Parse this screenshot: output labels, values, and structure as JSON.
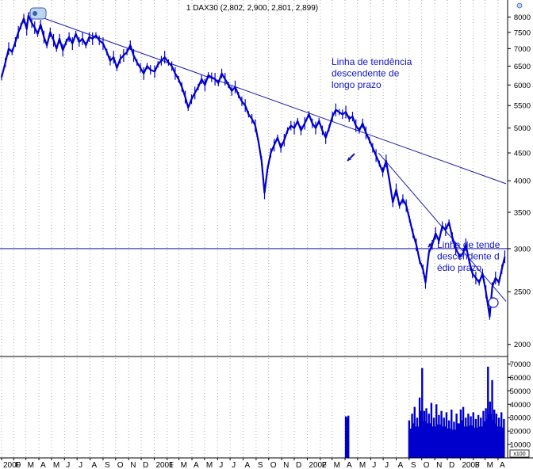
{
  "chart_data": {
    "type": "line",
    "title": "1 DAX30 (2,802, 2,900, 2,801, 2,899)",
    "price_axis": {
      "scale": "log",
      "ylim": [
        1900,
        8600
      ],
      "ticks": [
        8000,
        7500,
        7000,
        6500,
        6000,
        5500,
        5000,
        4500,
        4000,
        3500,
        3000,
        2500,
        2000
      ]
    },
    "volume_axis": {
      "ylim": [
        0,
        75000
      ],
      "ticks": [
        70000,
        60000,
        50000,
        40000,
        30000,
        20000,
        10000
      ],
      "multiplier_label": "x100"
    },
    "x_axis": {
      "ticks": [
        {
          "label": "2000",
          "date": "2000-01-03"
        },
        {
          "label": "F",
          "date": "2000-02-01"
        },
        {
          "label": "M",
          "date": "2000-03-01"
        },
        {
          "label": "A",
          "date": "2000-04-01"
        },
        {
          "label": "M",
          "date": "2000-05-01"
        },
        {
          "label": "J",
          "date": "2000-06-01"
        },
        {
          "label": "J",
          "date": "2000-07-01"
        },
        {
          "label": "A",
          "date": "2000-08-01"
        },
        {
          "label": "S",
          "date": "2000-09-01"
        },
        {
          "label": "O",
          "date": "2000-10-01"
        },
        {
          "label": "N",
          "date": "2000-11-01"
        },
        {
          "label": "D",
          "date": "2000-12-01"
        },
        {
          "label": "2001",
          "date": "2001-01-01"
        },
        {
          "label": "F",
          "date": "2001-02-01"
        },
        {
          "label": "M",
          "date": "2001-03-01"
        },
        {
          "label": "A",
          "date": "2001-04-01"
        },
        {
          "label": "M",
          "date": "2001-05-01"
        },
        {
          "label": "J",
          "date": "2001-06-01"
        },
        {
          "label": "J",
          "date": "2001-07-01"
        },
        {
          "label": "A",
          "date": "2001-08-01"
        },
        {
          "label": "S",
          "date": "2001-09-01"
        },
        {
          "label": "O",
          "date": "2001-10-01"
        },
        {
          "label": "N",
          "date": "2001-11-01"
        },
        {
          "label": "D",
          "date": "2001-12-01"
        },
        {
          "label": "2002",
          "date": "2002-01-01"
        },
        {
          "label": "F",
          "date": "2002-02-01"
        },
        {
          "label": "M",
          "date": "2002-03-01"
        },
        {
          "label": "A",
          "date": "2002-04-01"
        },
        {
          "label": "M",
          "date": "2002-05-01"
        },
        {
          "label": "J",
          "date": "2002-06-01"
        },
        {
          "label": "J",
          "date": "2002-07-01"
        },
        {
          "label": "A",
          "date": "2002-08-01"
        },
        {
          "label": "S",
          "date": "2002-09-01"
        },
        {
          "label": "O",
          "date": "2002-10-01"
        },
        {
          "label": "N",
          "date": "2002-11-01"
        },
        {
          "label": "D",
          "date": "2002-12-01"
        },
        {
          "label": "2003",
          "date": "2003-01-01"
        },
        {
          "label": "F",
          "date": "2003-02-01"
        },
        {
          "label": "M",
          "date": "2003-03-01"
        },
        {
          "label": "A",
          "date": "2003-04-01"
        }
      ],
      "end_date": "2003-04-20"
    },
    "series": [
      {
        "type": "line",
        "color": "#0000cc",
        "points": [
          [
            "2000-01-03",
            6200
          ],
          [
            "2000-01-12",
            6600
          ],
          [
            "2000-01-20",
            7000
          ],
          [
            "2000-01-28",
            6900
          ],
          [
            "2000-02-05",
            7200
          ],
          [
            "2000-02-12",
            7500
          ],
          [
            "2000-02-18",
            7700
          ],
          [
            "2000-02-25",
            7950
          ],
          [
            "2000-03-03",
            7600
          ],
          [
            "2000-03-07",
            8050
          ],
          [
            "2000-03-15",
            7800
          ],
          [
            "2000-03-22",
            7650
          ],
          [
            "2000-03-29",
            7450
          ],
          [
            "2000-04-05",
            7750
          ],
          [
            "2000-04-13",
            7350
          ],
          [
            "2000-04-20",
            7100
          ],
          [
            "2000-04-28",
            7500
          ],
          [
            "2000-05-06",
            7250
          ],
          [
            "2000-05-13",
            7000
          ],
          [
            "2000-05-20",
            7300
          ],
          [
            "2000-05-28",
            6950
          ],
          [
            "2000-06-05",
            7200
          ],
          [
            "2000-06-12",
            7350
          ],
          [
            "2000-06-20",
            7150
          ],
          [
            "2000-06-28",
            7450
          ],
          [
            "2000-07-06",
            7200
          ],
          [
            "2000-07-14",
            7300
          ],
          [
            "2000-07-22",
            7100
          ],
          [
            "2000-07-30",
            7350
          ],
          [
            "2000-08-07",
            7300
          ],
          [
            "2000-08-15",
            7400
          ],
          [
            "2000-08-23",
            7250
          ],
          [
            "2000-09-01",
            7150
          ],
          [
            "2000-09-10",
            6900
          ],
          [
            "2000-09-18",
            6650
          ],
          [
            "2000-09-26",
            6750
          ],
          [
            "2000-10-04",
            6450
          ],
          [
            "2000-10-12",
            6700
          ],
          [
            "2000-10-20",
            6800
          ],
          [
            "2000-10-28",
            6900
          ],
          [
            "2000-11-05",
            7100
          ],
          [
            "2000-11-13",
            6800
          ],
          [
            "2000-11-21",
            6600
          ],
          [
            "2000-11-29",
            6450
          ],
          [
            "2000-12-07",
            6300
          ],
          [
            "2000-12-15",
            6500
          ],
          [
            "2000-12-23",
            6400
          ],
          [
            "2001-01-02",
            6350
          ],
          [
            "2001-01-10",
            6550
          ],
          [
            "2001-01-18",
            6650
          ],
          [
            "2001-01-26",
            6750
          ],
          [
            "2001-02-04",
            6600
          ],
          [
            "2001-02-12",
            6500
          ],
          [
            "2001-02-20",
            6300
          ],
          [
            "2001-02-28",
            6150
          ],
          [
            "2001-03-08",
            5950
          ],
          [
            "2001-03-16",
            5700
          ],
          [
            "2001-03-23",
            5450
          ],
          [
            "2001-03-31",
            5650
          ],
          [
            "2001-04-08",
            5800
          ],
          [
            "2001-04-16",
            5950
          ],
          [
            "2001-04-24",
            6150
          ],
          [
            "2001-05-02",
            6000
          ],
          [
            "2001-05-10",
            6250
          ],
          [
            "2001-05-18",
            6200
          ],
          [
            "2001-05-26",
            6150
          ],
          [
            "2001-06-03",
            6050
          ],
          [
            "2001-06-11",
            6300
          ],
          [
            "2001-06-19",
            6150
          ],
          [
            "2001-06-27",
            6000
          ],
          [
            "2001-07-05",
            5850
          ],
          [
            "2001-07-13",
            5950
          ],
          [
            "2001-07-21",
            5750
          ],
          [
            "2001-07-29",
            5600
          ],
          [
            "2001-08-06",
            5500
          ],
          [
            "2001-08-14",
            5300
          ],
          [
            "2001-08-22",
            5200
          ],
          [
            "2001-08-30",
            5050
          ],
          [
            "2001-09-07",
            4700
          ],
          [
            "2001-09-14",
            4350
          ],
          [
            "2001-09-21",
            3800
          ],
          [
            "2001-09-28",
            4200
          ],
          [
            "2001-10-06",
            4500
          ],
          [
            "2001-10-14",
            4650
          ],
          [
            "2001-10-22",
            4800
          ],
          [
            "2001-10-30",
            4600
          ],
          [
            "2001-11-07",
            4750
          ],
          [
            "2001-11-15",
            4950
          ],
          [
            "2001-11-23",
            5050
          ],
          [
            "2001-12-01",
            5000
          ],
          [
            "2001-12-09",
            5150
          ],
          [
            "2001-12-17",
            4950
          ],
          [
            "2001-12-26",
            5100
          ],
          [
            "2002-01-05",
            5300
          ],
          [
            "2002-01-13",
            5100
          ],
          [
            "2002-01-21",
            5000
          ],
          [
            "2002-01-29",
            5150
          ],
          [
            "2002-02-06",
            4950
          ],
          [
            "2002-02-14",
            4800
          ],
          [
            "2002-02-22",
            5000
          ],
          [
            "2002-03-02",
            5250
          ],
          [
            "2002-03-10",
            5400
          ],
          [
            "2002-03-18",
            5350
          ],
          [
            "2002-03-26",
            5300
          ],
          [
            "2002-04-03",
            5350
          ],
          [
            "2002-04-11",
            5200
          ],
          [
            "2002-04-19",
            5250
          ],
          [
            "2002-04-27",
            5050
          ],
          [
            "2002-05-05",
            4950
          ],
          [
            "2002-05-13",
            5100
          ],
          [
            "2002-05-21",
            4900
          ],
          [
            "2002-05-29",
            4750
          ],
          [
            "2002-06-06",
            4600
          ],
          [
            "2002-06-14",
            4450
          ],
          [
            "2002-06-22",
            4300
          ],
          [
            "2002-06-30",
            4150
          ],
          [
            "2002-07-08",
            4350
          ],
          [
            "2002-07-16",
            4000
          ],
          [
            "2002-07-24",
            3650
          ],
          [
            "2002-08-01",
            3850
          ],
          [
            "2002-08-09",
            3600
          ],
          [
            "2002-08-17",
            3700
          ],
          [
            "2002-08-25",
            3600
          ],
          [
            "2002-09-02",
            3400
          ],
          [
            "2002-09-10",
            3200
          ],
          [
            "2002-09-18",
            3050
          ],
          [
            "2002-09-26",
            2850
          ],
          [
            "2002-10-04",
            2750
          ],
          [
            "2002-10-10",
            2600
          ],
          [
            "2002-10-18",
            2950
          ],
          [
            "2002-10-26",
            3050
          ],
          [
            "2002-11-03",
            3200
          ],
          [
            "2002-11-11",
            3100
          ],
          [
            "2002-11-19",
            3300
          ],
          [
            "2002-11-27",
            3250
          ],
          [
            "2002-12-05",
            3350
          ],
          [
            "2002-12-13",
            3150
          ],
          [
            "2002-12-21",
            3000
          ],
          [
            "2002-12-31",
            2900
          ],
          [
            "2003-01-08",
            2950
          ],
          [
            "2003-01-14",
            3050
          ],
          [
            "2003-01-22",
            2850
          ],
          [
            "2003-01-30",
            2700
          ],
          [
            "2003-02-07",
            2650
          ],
          [
            "2003-02-15",
            2600
          ],
          [
            "2003-02-23",
            2700
          ],
          [
            "2003-03-03",
            2500
          ],
          [
            "2003-03-12",
            2250
          ],
          [
            "2003-03-18",
            2550
          ],
          [
            "2003-03-26",
            2650
          ],
          [
            "2003-04-03",
            2600
          ],
          [
            "2003-04-10",
            2750
          ],
          [
            "2003-04-17",
            2899
          ]
        ]
      }
    ],
    "volume": [
      [
        "2002-04-03",
        31000
      ],
      [
        "2002-04-06",
        30000
      ],
      [
        "2002-04-09",
        31500
      ],
      [
        "2002-09-01",
        28000
      ],
      [
        "2002-09-08",
        33000
      ],
      [
        "2002-09-14",
        38000
      ],
      [
        "2002-09-20",
        30000
      ],
      [
        "2002-09-26",
        45000
      ],
      [
        "2002-10-02",
        67000
      ],
      [
        "2002-10-07",
        35000
      ],
      [
        "2002-10-12",
        37000
      ],
      [
        "2002-10-18",
        33000
      ],
      [
        "2002-10-24",
        41000
      ],
      [
        "2002-10-30",
        30000
      ],
      [
        "2002-11-05",
        40000
      ],
      [
        "2002-11-11",
        32000
      ],
      [
        "2002-11-17",
        35000
      ],
      [
        "2002-11-23",
        30000
      ],
      [
        "2002-11-29",
        34000
      ],
      [
        "2002-12-05",
        28000
      ],
      [
        "2002-12-11",
        36000
      ],
      [
        "2002-12-17",
        27000
      ],
      [
        "2002-12-23",
        33000
      ],
      [
        "2003-01-02",
        36000
      ],
      [
        "2003-01-08",
        38000
      ],
      [
        "2003-01-14",
        30000
      ],
      [
        "2003-01-20",
        33000
      ],
      [
        "2003-01-26",
        31000
      ],
      [
        "2003-02-01",
        34000
      ],
      [
        "2003-02-07",
        29000
      ],
      [
        "2003-02-13",
        32000
      ],
      [
        "2003-02-19",
        30000
      ],
      [
        "2003-02-25",
        35000
      ],
      [
        "2003-03-03",
        37000
      ],
      [
        "2003-03-08",
        68000
      ],
      [
        "2003-03-13",
        42000
      ],
      [
        "2003-03-18",
        58000
      ],
      [
        "2003-03-23",
        36000
      ],
      [
        "2003-03-28",
        33000
      ],
      [
        "2003-04-03",
        30000
      ],
      [
        "2003-04-09",
        34000
      ],
      [
        "2003-04-15",
        29000
      ]
    ],
    "trend_lines": [
      {
        "name": "long-term",
        "from": [
          "2000-03-07",
          8150
        ],
        "to": [
          "2003-04-20",
          3950
        ]
      },
      {
        "name": "medium-term",
        "from": [
          "2002-06-20",
          4500
        ],
        "to": [
          "2003-04-20",
          2400
        ]
      }
    ],
    "support_line": {
      "value": 3000
    },
    "annotations": [
      {
        "id": "long",
        "lines": [
          "Linha de tendência",
          "descendente de",
          "longo prazo"
        ]
      },
      {
        "id": "medium",
        "lines": [
          "Linha de tende",
          "descendente d",
          "édio prazo"
        ]
      }
    ],
    "grid": "vertical-dotted"
  }
}
